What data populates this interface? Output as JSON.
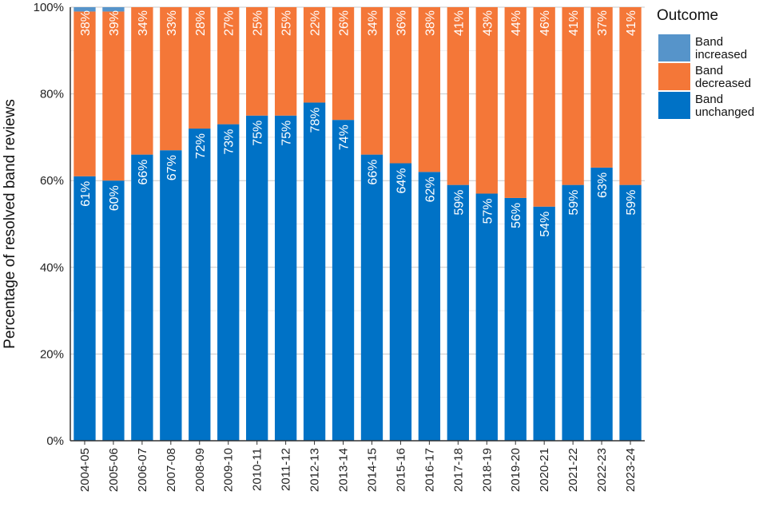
{
  "chart_data": {
    "type": "bar",
    "stacked": true,
    "title": "",
    "xlabel": "",
    "ylabel": "Percentage of resolved band reviews",
    "ylim": [
      0,
      100
    ],
    "yticks": [
      "0%",
      "20%",
      "40%",
      "60%",
      "80%",
      "100%"
    ],
    "grid": true,
    "categories": [
      "2004-05",
      "2005-06",
      "2006-07",
      "2007-08",
      "2008-09",
      "2009-10",
      "2010-11",
      "2011-12",
      "2012-13",
      "2013-14",
      "2014-15",
      "2015-16",
      "2016-17",
      "2017-18",
      "2018-19",
      "2019-20",
      "2020-21",
      "2021-22",
      "2022-23",
      "2023-24"
    ],
    "series": [
      {
        "name": "Band unchanged",
        "color": "#0072c6",
        "values": [
          61,
          60,
          66,
          67,
          72,
          73,
          75,
          75,
          78,
          74,
          66,
          64,
          62,
          59,
          57,
          56,
          54,
          59,
          63,
          59
        ]
      },
      {
        "name": "Band decreased",
        "color": "#f47738",
        "values": [
          38,
          39,
          34,
          33,
          28,
          27,
          25,
          25,
          22,
          26,
          34,
          36,
          38,
          41,
          43,
          44,
          46,
          41,
          37,
          41
        ]
      },
      {
        "name": "Band increased",
        "color": "#5694ca",
        "values": [
          1,
          1,
          0.5,
          0.2,
          0.2,
          0.2,
          0.2,
          0.2,
          0.2,
          0.2,
          0.2,
          0.2,
          0.2,
          0.2,
          0.2,
          0.2,
          0.2,
          0.2,
          0.2,
          0.2
        ]
      }
    ],
    "labels": {
      "Band unchanged": [
        "61%",
        "60%",
        "66%",
        "67%",
        "72%",
        "73%",
        "75%",
        "75%",
        "78%",
        "74%",
        "66%",
        "64%",
        "62%",
        "59%",
        "57%",
        "56%",
        "54%",
        "59%",
        "63%",
        "59%"
      ],
      "Band decreased": [
        "38%",
        "39%",
        "34%",
        "33%",
        "28%",
        "27%",
        "25%",
        "25%",
        "22%",
        "26%",
        "34%",
        "36%",
        "38%",
        "41%",
        "43%",
        "44%",
        "46%",
        "41%",
        "37%",
        "41%"
      ]
    },
    "legend": {
      "title": "Outcome",
      "placement": "right",
      "entries": [
        {
          "label_line1": "Band",
          "label_line2": "increased",
          "color": "#5694ca"
        },
        {
          "label_line1": "Band",
          "label_line2": "decreased",
          "color": "#f47738"
        },
        {
          "label_line1": "Band",
          "label_line2": "unchanged",
          "color": "#0072c6"
        }
      ]
    }
  }
}
